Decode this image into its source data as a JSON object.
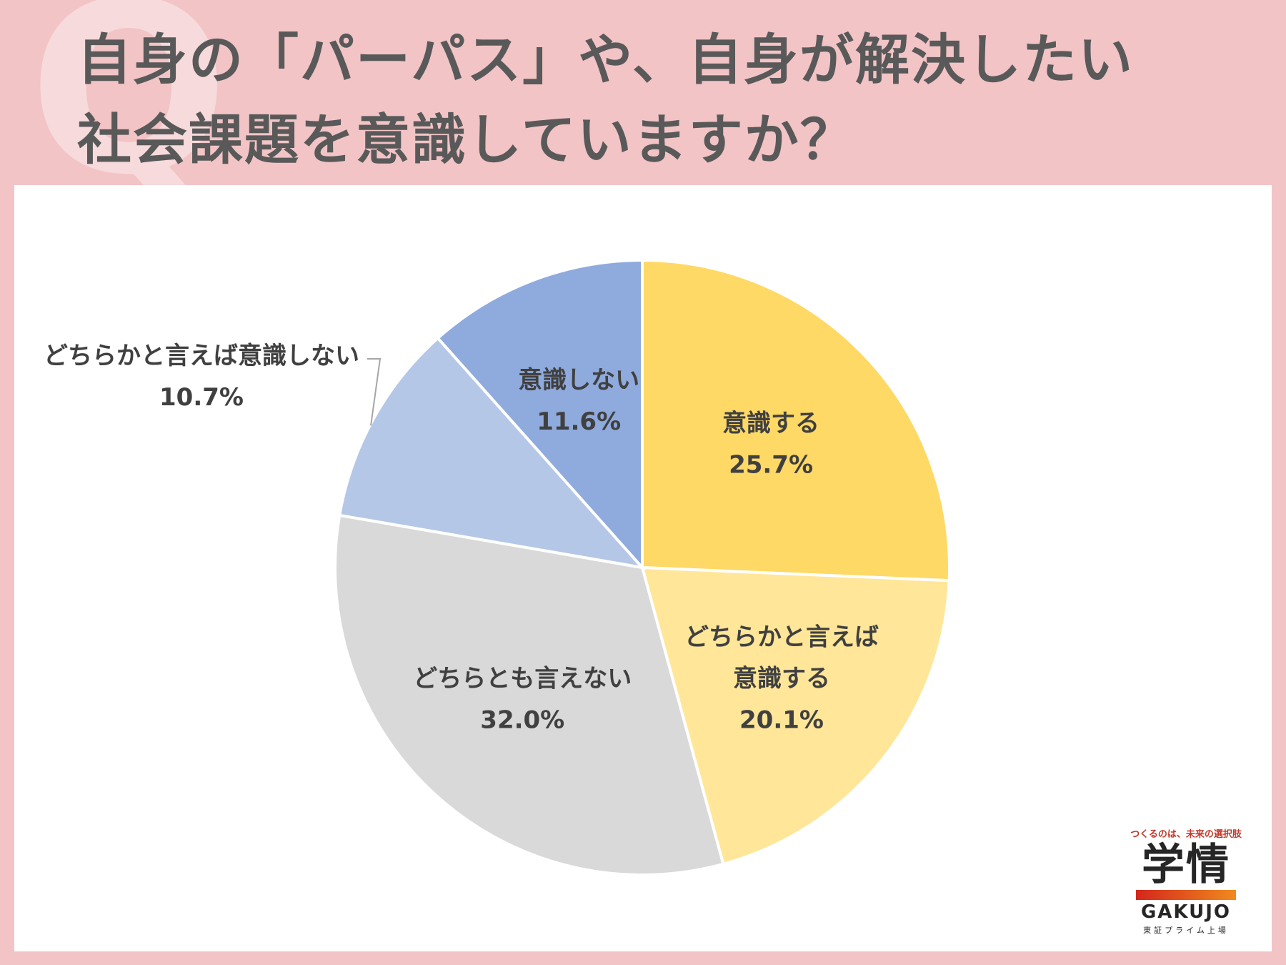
{
  "title_lines": [
    "自身の「パーパス」や、自身が解決したい",
    "社会課題を意識していますか？"
  ],
  "decor": {
    "q_mark": "Q"
  },
  "chart_data": {
    "type": "pie",
    "title": "自身の「パーパス」や、自身が解決したい社会課題を意識していますか？",
    "start_angle_deg": 0,
    "direction": "clockwise",
    "slices": [
      {
        "label_lines": [
          "意識する"
        ],
        "value": 25.7,
        "value_label": "25.7%",
        "color": "#ffd966"
      },
      {
        "label_lines": [
          "どちらかと言えば",
          "意識する"
        ],
        "value": 20.1,
        "value_label": "20.1%",
        "color": "#ffe699"
      },
      {
        "label_lines": [
          "どちらとも言えない"
        ],
        "value": 32.0,
        "value_label": "32.0%",
        "color": "#d9d9d9"
      },
      {
        "label_lines": [
          "どちらかと言えば意識しない"
        ],
        "value": 10.7,
        "value_label": "10.7%",
        "color": "#b4c7e7",
        "label_outside": true
      },
      {
        "label_lines": [
          "意識しない"
        ],
        "value": 11.6,
        "value_label": "11.6%",
        "color": "#8faadc"
      }
    ]
  },
  "logo": {
    "tagline": "つくるのは、未来の選択肢",
    "mark": "学情",
    "brand": "GAKUJO",
    "listing": "東証プライム上場"
  }
}
